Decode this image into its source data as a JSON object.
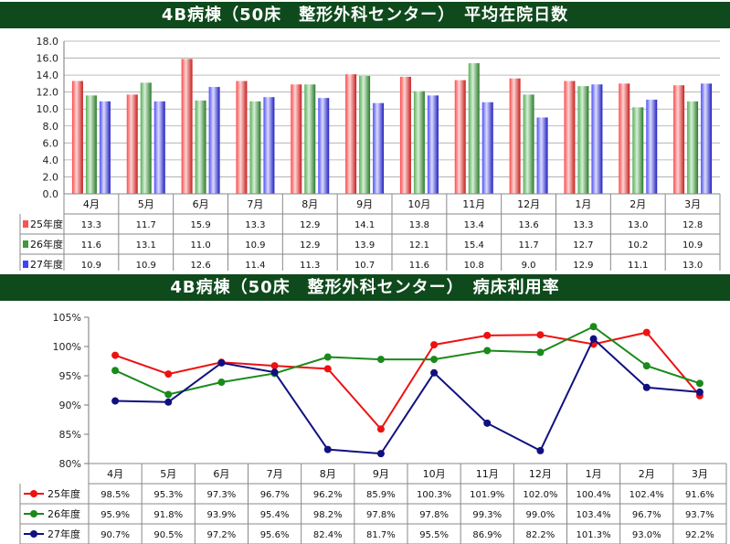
{
  "banner1": {
    "title": "4B病棟（50床　整形外科センター）　平均在院日数"
  },
  "banner2": {
    "title": "4B病棟（50床　整形外科センター）　病床利用率"
  },
  "chart_data": [
    {
      "type": "bar",
      "categories": [
        "4月",
        "5月",
        "6月",
        "7月",
        "8月",
        "9月",
        "10月",
        "11月",
        "12月",
        "1月",
        "2月",
        "3月"
      ],
      "series": [
        {
          "name": "25年度",
          "color": "#ff4040",
          "values": [
            13.3,
            11.7,
            15.9,
            13.3,
            12.9,
            14.1,
            13.8,
            13.4,
            13.6,
            13.3,
            13.0,
            12.8
          ]
        },
        {
          "name": "26年度",
          "color": "#3c9a3c",
          "values": [
            11.6,
            13.1,
            11.0,
            10.9,
            12.9,
            13.9,
            12.1,
            15.4,
            11.7,
            12.7,
            10.2,
            10.9
          ]
        },
        {
          "name": "27年度",
          "color": "#3c3cff",
          "values": [
            10.9,
            10.9,
            12.6,
            11.4,
            11.3,
            10.7,
            11.6,
            10.8,
            9.0,
            12.9,
            11.1,
            13.0
          ]
        }
      ],
      "ylim": [
        0,
        18
      ],
      "yticks": [
        "0.0",
        "2.0",
        "4.0",
        "6.0",
        "8.0",
        "10.0",
        "12.0",
        "14.0",
        "16.0",
        "18.0"
      ],
      "grid": true,
      "legend": "data-table"
    },
    {
      "type": "line",
      "categories": [
        "4月",
        "5月",
        "6月",
        "7月",
        "8月",
        "9月",
        "10月",
        "11月",
        "12月",
        "1月",
        "2月",
        "3月"
      ],
      "series": [
        {
          "name": "25年度",
          "color": "#ee1111",
          "values": [
            98.5,
            95.3,
            97.3,
            96.7,
            96.2,
            85.9,
            100.3,
            101.9,
            102.0,
            100.4,
            102.4,
            91.6
          ],
          "labels": [
            "98.5%",
            "95.3%",
            "97.3%",
            "96.7%",
            "96.2%",
            "85.9%",
            "100.3%",
            "101.9%",
            "102.0%",
            "100.4%",
            "102.4%",
            "91.6%"
          ]
        },
        {
          "name": "26年度",
          "color": "#1a8a1a",
          "values": [
            95.9,
            91.8,
            93.9,
            95.4,
            98.2,
            97.8,
            97.8,
            99.3,
            99.0,
            103.4,
            96.7,
            93.7
          ],
          "labels": [
            "95.9%",
            "91.8%",
            "93.9%",
            "95.4%",
            "98.2%",
            "97.8%",
            "97.8%",
            "99.3%",
            "99.0%",
            "103.4%",
            "96.7%",
            "93.7%"
          ]
        },
        {
          "name": "27年度",
          "color": "#101080",
          "values": [
            90.7,
            90.5,
            97.2,
            95.6,
            82.4,
            81.7,
            95.5,
            86.9,
            82.2,
            101.3,
            93.0,
            92.2
          ],
          "labels": [
            "90.7%",
            "90.5%",
            "97.2%",
            "95.6%",
            "82.4%",
            "81.7%",
            "95.5%",
            "86.9%",
            "82.2%",
            "101.3%",
            "93.0%",
            "92.2%"
          ]
        }
      ],
      "ylim": [
        80,
        105
      ],
      "yticks": [
        "80%",
        "85%",
        "90%",
        "95%",
        "100%",
        "105%"
      ],
      "grid": false,
      "legend": "data-table"
    }
  ]
}
